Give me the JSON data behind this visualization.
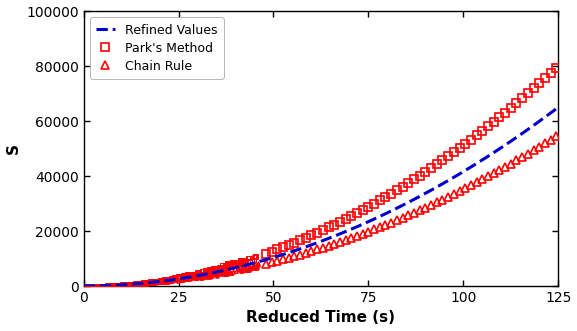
{
  "title": "",
  "xlabel": "Reduced Time (s)",
  "ylabel": "S",
  "xlim": [
    0,
    125
  ],
  "ylim": [
    0,
    100000
  ],
  "yticks": [
    0,
    20000,
    40000,
    60000,
    80000,
    100000
  ],
  "xticks": [
    0,
    25,
    50,
    75,
    100,
    125
  ],
  "park_color": "#FF0000",
  "refined_color": "#0000CC",
  "chain_color": "#FF0000",
  "background_color": "#FFFFFF",
  "legend_labels": [
    "Park's Method",
    "Refined Values",
    "Chain Rule"
  ],
  "park_coeff": 4.5,
  "park_exp": 1.72,
  "refined_coeff": 3.9,
  "refined_exp": 1.72,
  "chain_coeff": 3.2,
  "chain_exp": 1.72,
  "figsize": [
    5.77,
    3.31
  ],
  "dpi": 100
}
